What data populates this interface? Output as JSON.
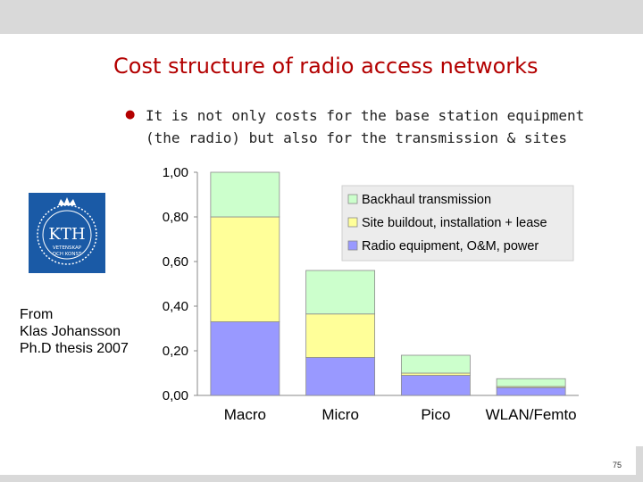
{
  "slide": {
    "title": "Cost structure of radio access networks",
    "bullet": "It is not only costs for the base station equipment (the radio) but also for the transmission & sites",
    "source": "From\nKlas Johansson\nPh.D thesis 2007",
    "page_number": "75",
    "logo": {
      "text": "KTH",
      "subtext_1": "VETENSKAP",
      "subtext_2": "OCH KONST",
      "color": "#1a5aa6"
    },
    "title_color": "#b30000"
  },
  "chart_data": {
    "type": "bar",
    "stacked": true,
    "categories": [
      "Macro",
      "Micro",
      "Pico",
      "WLAN/Femto"
    ],
    "series": [
      {
        "name": "Radio equipment, O&M, power",
        "color": "#9999ff",
        "values": [
          0.33,
          0.17,
          0.09,
          0.035
        ]
      },
      {
        "name": "Site buildout, installation + lease",
        "color": "#ffff99",
        "values": [
          0.47,
          0.195,
          0.01,
          0.005
        ]
      },
      {
        "name": "Backhaul transmission",
        "color": "#ccffcc",
        "values": [
          0.2,
          0.195,
          0.08,
          0.035
        ]
      }
    ],
    "yticks": [
      "0,00",
      "0,20",
      "0,40",
      "0,60",
      "0,80",
      "1,00"
    ],
    "ylim": [
      0,
      1
    ],
    "grid": false,
    "legend_position": "top-right"
  }
}
